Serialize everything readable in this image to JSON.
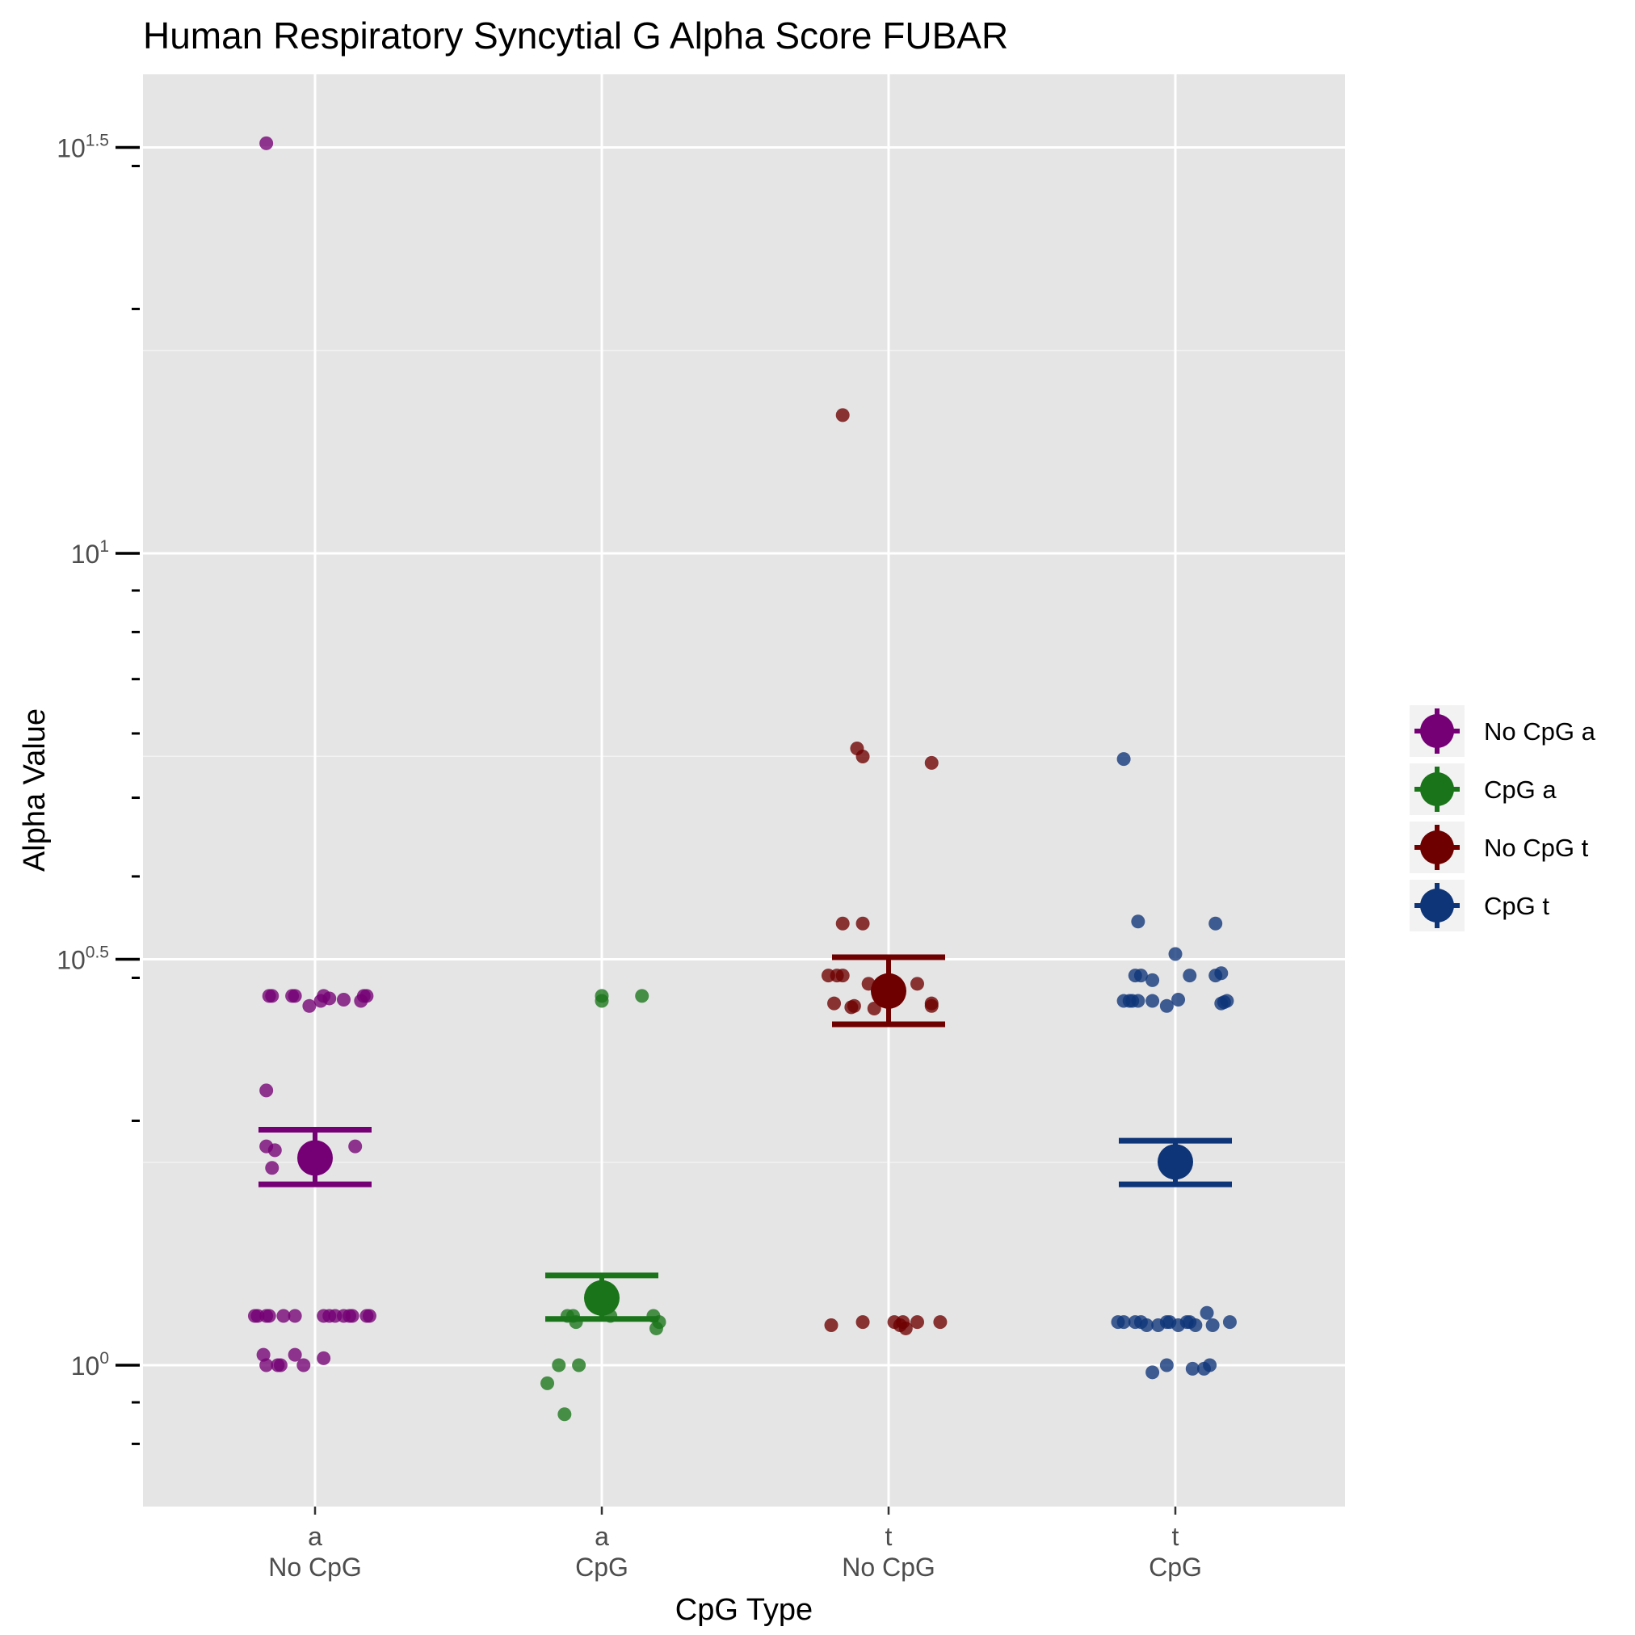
{
  "chart_data": {
    "type": "scatter",
    "title": "Human Respiratory Syncytial G Alpha Score FUBAR",
    "xlabel": "CpG Type",
    "ylabel": "Alpha Value",
    "y_scale": "log10",
    "ylim": [
      0.8,
      46
    ],
    "grid": true,
    "legend_position": "right",
    "y_ticks": [
      {
        "value": 1,
        "base": "10",
        "exp": "0"
      },
      {
        "value": 3.1623,
        "base": "10",
        "exp": "0.5"
      },
      {
        "value": 10,
        "base": "10",
        "exp": "1"
      },
      {
        "value": 31.623,
        "base": "10",
        "exp": "1.5"
      }
    ],
    "categories": [
      {
        "line1": "a",
        "line2": "No CpG"
      },
      {
        "line1": "a",
        "line2": "CpG"
      },
      {
        "line1": "t",
        "line2": "No CpG"
      },
      {
        "line1": "t",
        "line2": "CpG"
      }
    ],
    "series": [
      {
        "name": "No CpG a",
        "color": "#750075",
        "mean": 1.8,
        "error_low": 1.67,
        "error_high": 1.95,
        "points": [
          {
            "dx": -0.17,
            "y": 32.0
          },
          {
            "dx": -0.17,
            "y": 2.18
          },
          {
            "dx": -0.17,
            "y": 1.86
          },
          {
            "dx": -0.14,
            "y": 1.84
          },
          {
            "dx": -0.15,
            "y": 1.75
          },
          {
            "dx": 0.14,
            "y": 1.86
          },
          {
            "dx": -0.16,
            "y": 2.85
          },
          {
            "dx": -0.15,
            "y": 2.85
          },
          {
            "dx": -0.08,
            "y": 2.85
          },
          {
            "dx": -0.07,
            "y": 2.85
          },
          {
            "dx": -0.02,
            "y": 2.77
          },
          {
            "dx": 0.02,
            "y": 2.81
          },
          {
            "dx": 0.03,
            "y": 2.85
          },
          {
            "dx": 0.05,
            "y": 2.83
          },
          {
            "dx": 0.1,
            "y": 2.82
          },
          {
            "dx": 0.16,
            "y": 2.81
          },
          {
            "dx": 0.17,
            "y": 2.85
          },
          {
            "dx": 0.18,
            "y": 2.85
          },
          {
            "dx": -0.21,
            "y": 1.15
          },
          {
            "dx": -0.2,
            "y": 1.15
          },
          {
            "dx": -0.17,
            "y": 1.15
          },
          {
            "dx": -0.16,
            "y": 1.15
          },
          {
            "dx": -0.11,
            "y": 1.15
          },
          {
            "dx": -0.07,
            "y": 1.15
          },
          {
            "dx": 0.03,
            "y": 1.15
          },
          {
            "dx": 0.05,
            "y": 1.15
          },
          {
            "dx": 0.07,
            "y": 1.15
          },
          {
            "dx": 0.1,
            "y": 1.15
          },
          {
            "dx": 0.12,
            "y": 1.15
          },
          {
            "dx": 0.13,
            "y": 1.15
          },
          {
            "dx": 0.18,
            "y": 1.15
          },
          {
            "dx": 0.19,
            "y": 1.15
          },
          {
            "dx": -0.18,
            "y": 1.03
          },
          {
            "dx": -0.17,
            "y": 1.0
          },
          {
            "dx": -0.13,
            "y": 1.0
          },
          {
            "dx": -0.12,
            "y": 1.0
          },
          {
            "dx": -0.07,
            "y": 1.03
          },
          {
            "dx": -0.04,
            "y": 1.0
          },
          {
            "dx": 0.03,
            "y": 1.02
          }
        ]
      },
      {
        "name": "CpG a",
        "color": "#1a741a",
        "mean": 1.21,
        "error_low": 1.14,
        "error_high": 1.29,
        "points": [
          {
            "dx": 0.0,
            "y": 2.85
          },
          {
            "dx": 0.0,
            "y": 2.81
          },
          {
            "dx": 0.14,
            "y": 2.85
          },
          {
            "dx": -0.12,
            "y": 1.15
          },
          {
            "dx": -0.1,
            "y": 1.15
          },
          {
            "dx": -0.09,
            "y": 1.13
          },
          {
            "dx": 0.03,
            "y": 1.15
          },
          {
            "dx": 0.18,
            "y": 1.15
          },
          {
            "dx": 0.2,
            "y": 1.13
          },
          {
            "dx": 0.19,
            "y": 1.11
          },
          {
            "dx": -0.15,
            "y": 1.0
          },
          {
            "dx": -0.08,
            "y": 1.0
          },
          {
            "dx": -0.19,
            "y": 0.95
          },
          {
            "dx": -0.13,
            "y": 0.87
          }
        ]
      },
      {
        "name": "No CpG t",
        "color": "#6e0000",
        "mean": 2.89,
        "error_low": 2.63,
        "error_high": 3.18,
        "points": [
          {
            "dx": -0.16,
            "y": 14.8
          },
          {
            "dx": -0.11,
            "y": 5.75
          },
          {
            "dx": -0.09,
            "y": 5.62
          },
          {
            "dx": 0.15,
            "y": 5.52
          },
          {
            "dx": -0.09,
            "y": 3.5
          },
          {
            "dx": -0.16,
            "y": 3.5
          },
          {
            "dx": -0.16,
            "y": 3.02
          },
          {
            "dx": -0.18,
            "y": 3.02
          },
          {
            "dx": -0.21,
            "y": 3.02
          },
          {
            "dx": -0.07,
            "y": 2.95
          },
          {
            "dx": 0.1,
            "y": 2.95
          },
          {
            "dx": -0.19,
            "y": 2.79
          },
          {
            "dx": -0.12,
            "y": 2.77
          },
          {
            "dx": -0.13,
            "y": 2.76
          },
          {
            "dx": -0.05,
            "y": 2.75
          },
          {
            "dx": 0.15,
            "y": 2.79
          },
          {
            "dx": 0.15,
            "y": 2.77
          },
          {
            "dx": -0.2,
            "y": 1.12
          },
          {
            "dx": -0.09,
            "y": 1.13
          },
          {
            "dx": 0.02,
            "y": 1.13
          },
          {
            "dx": 0.05,
            "y": 1.13
          },
          {
            "dx": 0.04,
            "y": 1.12
          },
          {
            "dx": 0.06,
            "y": 1.11
          },
          {
            "dx": 0.1,
            "y": 1.13
          },
          {
            "dx": 0.18,
            "y": 1.13
          }
        ]
      },
      {
        "name": "CpG t",
        "color": "#0e3578",
        "mean": 1.78,
        "error_low": 1.67,
        "error_high": 1.89,
        "points": [
          {
            "dx": -0.18,
            "y": 5.58
          },
          {
            "dx": -0.13,
            "y": 3.52
          },
          {
            "dx": 0.14,
            "y": 3.5
          },
          {
            "dx": 0.0,
            "y": 3.21
          },
          {
            "dx": -0.14,
            "y": 3.02
          },
          {
            "dx": -0.12,
            "y": 3.02
          },
          {
            "dx": -0.08,
            "y": 2.98
          },
          {
            "dx": 0.05,
            "y": 3.02
          },
          {
            "dx": 0.14,
            "y": 3.02
          },
          {
            "dx": 0.16,
            "y": 3.04
          },
          {
            "dx": -0.18,
            "y": 2.81
          },
          {
            "dx": -0.16,
            "y": 2.81
          },
          {
            "dx": -0.15,
            "y": 2.81
          },
          {
            "dx": -0.13,
            "y": 2.81
          },
          {
            "dx": -0.08,
            "y": 2.81
          },
          {
            "dx": 0.01,
            "y": 2.82
          },
          {
            "dx": -0.03,
            "y": 2.77
          },
          {
            "dx": 0.16,
            "y": 2.79
          },
          {
            "dx": 0.17,
            "y": 2.8
          },
          {
            "dx": 0.18,
            "y": 2.81
          },
          {
            "dx": -0.2,
            "y": 1.13
          },
          {
            "dx": -0.18,
            "y": 1.13
          },
          {
            "dx": -0.14,
            "y": 1.13
          },
          {
            "dx": -0.12,
            "y": 1.13
          },
          {
            "dx": -0.1,
            "y": 1.12
          },
          {
            "dx": -0.06,
            "y": 1.12
          },
          {
            "dx": -0.03,
            "y": 1.13
          },
          {
            "dx": -0.02,
            "y": 1.13
          },
          {
            "dx": 0.01,
            "y": 1.12
          },
          {
            "dx": 0.04,
            "y": 1.13
          },
          {
            "dx": 0.05,
            "y": 1.13
          },
          {
            "dx": 0.07,
            "y": 1.12
          },
          {
            "dx": 0.11,
            "y": 1.16
          },
          {
            "dx": 0.13,
            "y": 1.12
          },
          {
            "dx": 0.19,
            "y": 1.13
          },
          {
            "dx": -0.08,
            "y": 0.98
          },
          {
            "dx": -0.03,
            "y": 1.0
          },
          {
            "dx": 0.06,
            "y": 0.99
          },
          {
            "dx": 0.1,
            "y": 0.99
          },
          {
            "dx": 0.12,
            "y": 1.0
          }
        ]
      }
    ]
  }
}
